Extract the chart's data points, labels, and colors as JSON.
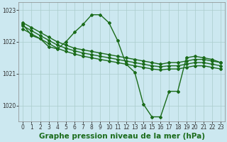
{
  "bg_color": "#cce8f0",
  "grid_color": "#aacccc",
  "line_color": "#1a6b1a",
  "title": "Graphe pression niveau de la mer (hPa)",
  "xlim": [
    -0.5,
    23.5
  ],
  "ylim": [
    1019.5,
    1023.25
  ],
  "yticks": [
    1020,
    1021,
    1022,
    1023
  ],
  "xticks": [
    0,
    1,
    2,
    3,
    4,
    5,
    6,
    7,
    8,
    9,
    10,
    11,
    12,
    13,
    14,
    15,
    16,
    17,
    18,
    19,
    20,
    21,
    22,
    23
  ],
  "lines": [
    {
      "x": [
        0,
        1,
        2,
        3,
        4,
        5,
        6,
        7,
        8,
        9,
        10,
        11,
        12,
        13,
        14,
        15,
        16,
        17,
        18,
        19,
        20,
        21,
        22,
        23
      ],
      "y": [
        1022.55,
        1022.2,
        1022.1,
        1021.85,
        1021.78,
        1022.0,
        1022.3,
        1022.55,
        1022.85,
        1022.85,
        1022.6,
        1022.05,
        1021.3,
        1021.05,
        1020.05,
        1019.65,
        1019.65,
        1020.45,
        1020.45,
        1021.5,
        1021.55,
        1021.5,
        1021.45,
        1021.35
      ],
      "marker": "D",
      "markersize": 2.0,
      "linewidth": 1.0
    },
    {
      "x": [
        0,
        1,
        2,
        3,
        4,
        5,
        6,
        7,
        8,
        9,
        10,
        11,
        12,
        13,
        14,
        15,
        16,
        17,
        18,
        19,
        20,
        21,
        22,
        23
      ],
      "y": [
        1022.6,
        1022.45,
        1022.3,
        1022.15,
        1022.0,
        1021.9,
        1021.8,
        1021.75,
        1021.7,
        1021.65,
        1021.6,
        1021.55,
        1021.5,
        1021.45,
        1021.4,
        1021.35,
        1021.3,
        1021.35,
        1021.35,
        1021.4,
        1021.45,
        1021.45,
        1021.4,
        1021.35
      ],
      "marker": "D",
      "markersize": 2.0,
      "linewidth": 1.0
    },
    {
      "x": [
        0,
        1,
        2,
        3,
        4,
        5,
        6,
        7,
        8,
        9,
        10,
        11,
        12,
        13,
        14,
        15,
        16,
        17,
        18,
        19,
        20,
        21,
        22,
        23
      ],
      "y": [
        1022.5,
        1022.35,
        1022.2,
        1022.05,
        1021.9,
        1021.8,
        1021.72,
        1021.65,
        1021.6,
        1021.55,
        1021.5,
        1021.45,
        1021.4,
        1021.35,
        1021.3,
        1021.25,
        1021.22,
        1021.25,
        1021.25,
        1021.3,
        1021.35,
        1021.35,
        1021.3,
        1021.25
      ],
      "marker": "D",
      "markersize": 2.0,
      "linewidth": 1.0
    },
    {
      "x": [
        0,
        1,
        2,
        3,
        4,
        5,
        6,
        7,
        8,
        9,
        10,
        11,
        12,
        13,
        14,
        15,
        16,
        17,
        18,
        19,
        20,
        21,
        22,
        23
      ],
      "y": [
        1022.4,
        1022.25,
        1022.1,
        1021.95,
        1021.8,
        1021.7,
        1021.62,
        1021.55,
        1021.5,
        1021.45,
        1021.4,
        1021.35,
        1021.3,
        1021.25,
        1021.2,
        1021.15,
        1021.12,
        1021.15,
        1021.15,
        1021.2,
        1021.25,
        1021.25,
        1021.2,
        1021.15
      ],
      "marker": "D",
      "markersize": 2.0,
      "linewidth": 1.0
    }
  ],
  "title_fontsize": 7.5,
  "tick_fontsize": 5.5
}
